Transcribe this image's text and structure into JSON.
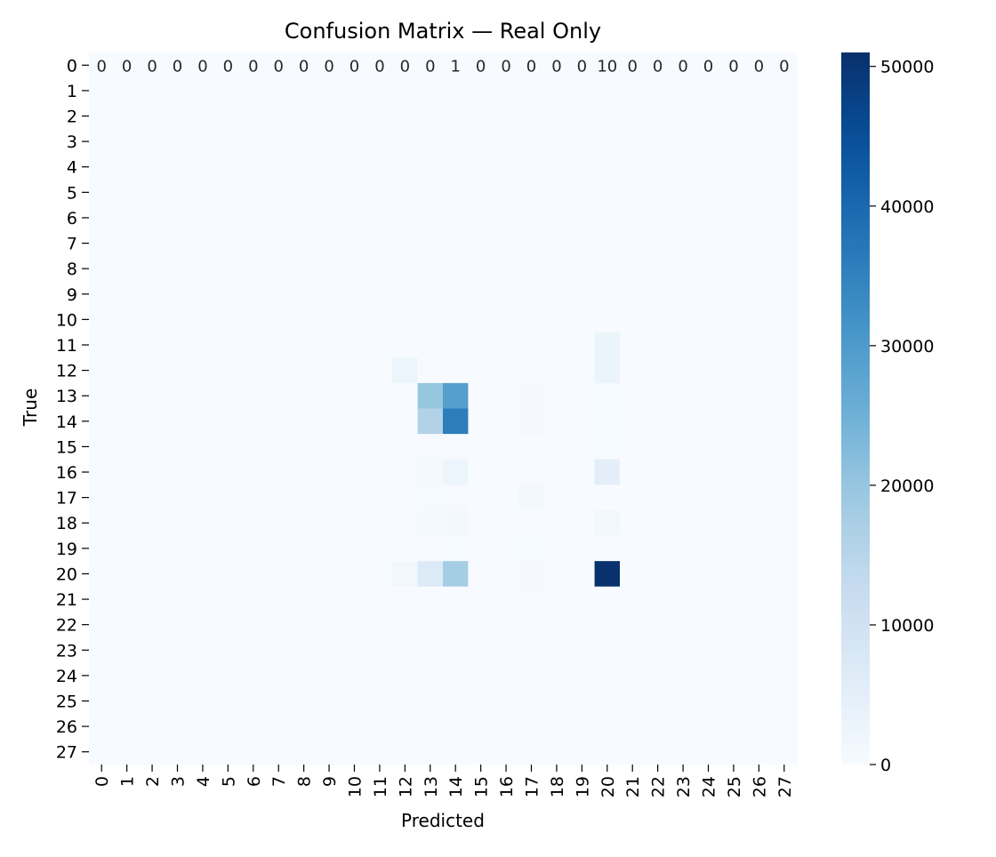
{
  "chart_data": {
    "type": "heatmap",
    "title": "Confusion Matrix — Real Only",
    "xlabel": "Predicted",
    "ylabel": "True",
    "x_categories": [
      "0",
      "1",
      "2",
      "3",
      "4",
      "5",
      "6",
      "7",
      "8",
      "9",
      "10",
      "11",
      "12",
      "13",
      "14",
      "15",
      "16",
      "17",
      "18",
      "19",
      "20",
      "21",
      "22",
      "23",
      "24",
      "25",
      "26",
      "27"
    ],
    "y_categories": [
      "0",
      "1",
      "2",
      "3",
      "4",
      "5",
      "6",
      "7",
      "8",
      "9",
      "10",
      "11",
      "12",
      "13",
      "14",
      "15",
      "16",
      "17",
      "18",
      "19",
      "20",
      "21",
      "22",
      "23",
      "24",
      "25",
      "26",
      "27"
    ],
    "annotated_row": 0,
    "annotated_row_values": [
      0,
      0,
      0,
      0,
      0,
      0,
      0,
      0,
      0,
      0,
      0,
      0,
      0,
      0,
      1,
      0,
      0,
      0,
      0,
      0,
      10,
      0,
      0,
      0,
      0,
      0,
      0,
      0
    ],
    "cells": [
      {
        "row": 0,
        "col": 14,
        "value": 1
      },
      {
        "row": 0,
        "col": 20,
        "value": 10
      },
      {
        "row": 11,
        "col": 14,
        "value": 300
      },
      {
        "row": 11,
        "col": 20,
        "value": 3000
      },
      {
        "row": 12,
        "col": 12,
        "value": 2500
      },
      {
        "row": 12,
        "col": 20,
        "value": 3000
      },
      {
        "row": 13,
        "col": 13,
        "value": 20000
      },
      {
        "row": 13,
        "col": 14,
        "value": 29000
      },
      {
        "row": 13,
        "col": 17,
        "value": 600
      },
      {
        "row": 13,
        "col": 20,
        "value": 500
      },
      {
        "row": 14,
        "col": 13,
        "value": 16000
      },
      {
        "row": 14,
        "col": 14,
        "value": 36000
      },
      {
        "row": 14,
        "col": 17,
        "value": 600
      },
      {
        "row": 14,
        "col": 20,
        "value": 500
      },
      {
        "row": 15,
        "col": 13,
        "value": 300
      },
      {
        "row": 15,
        "col": 14,
        "value": 300
      },
      {
        "row": 15,
        "col": 20,
        "value": 400
      },
      {
        "row": 16,
        "col": 13,
        "value": 800
      },
      {
        "row": 16,
        "col": 14,
        "value": 2500
      },
      {
        "row": 16,
        "col": 20,
        "value": 5000
      },
      {
        "row": 17,
        "col": 13,
        "value": 400
      },
      {
        "row": 17,
        "col": 14,
        "value": 300
      },
      {
        "row": 17,
        "col": 17,
        "value": 1000
      },
      {
        "row": 18,
        "col": 13,
        "value": 700
      },
      {
        "row": 18,
        "col": 14,
        "value": 1000
      },
      {
        "row": 18,
        "col": 20,
        "value": 1500
      },
      {
        "row": 19,
        "col": 13,
        "value": 300
      },
      {
        "row": 19,
        "col": 14,
        "value": 400
      },
      {
        "row": 19,
        "col": 17,
        "value": 400
      },
      {
        "row": 20,
        "col": 12,
        "value": 1500
      },
      {
        "row": 20,
        "col": 13,
        "value": 7000
      },
      {
        "row": 20,
        "col": 14,
        "value": 18000
      },
      {
        "row": 20,
        "col": 17,
        "value": 600
      },
      {
        "row": 20,
        "col": 20,
        "value": 50800
      },
      {
        "row": 21,
        "col": 17,
        "value": 300
      }
    ],
    "colorbar": {
      "min": 0,
      "max": 51000,
      "ticks": [
        0,
        10000,
        20000,
        30000,
        40000,
        50000
      ],
      "colormap": "Blues"
    }
  }
}
